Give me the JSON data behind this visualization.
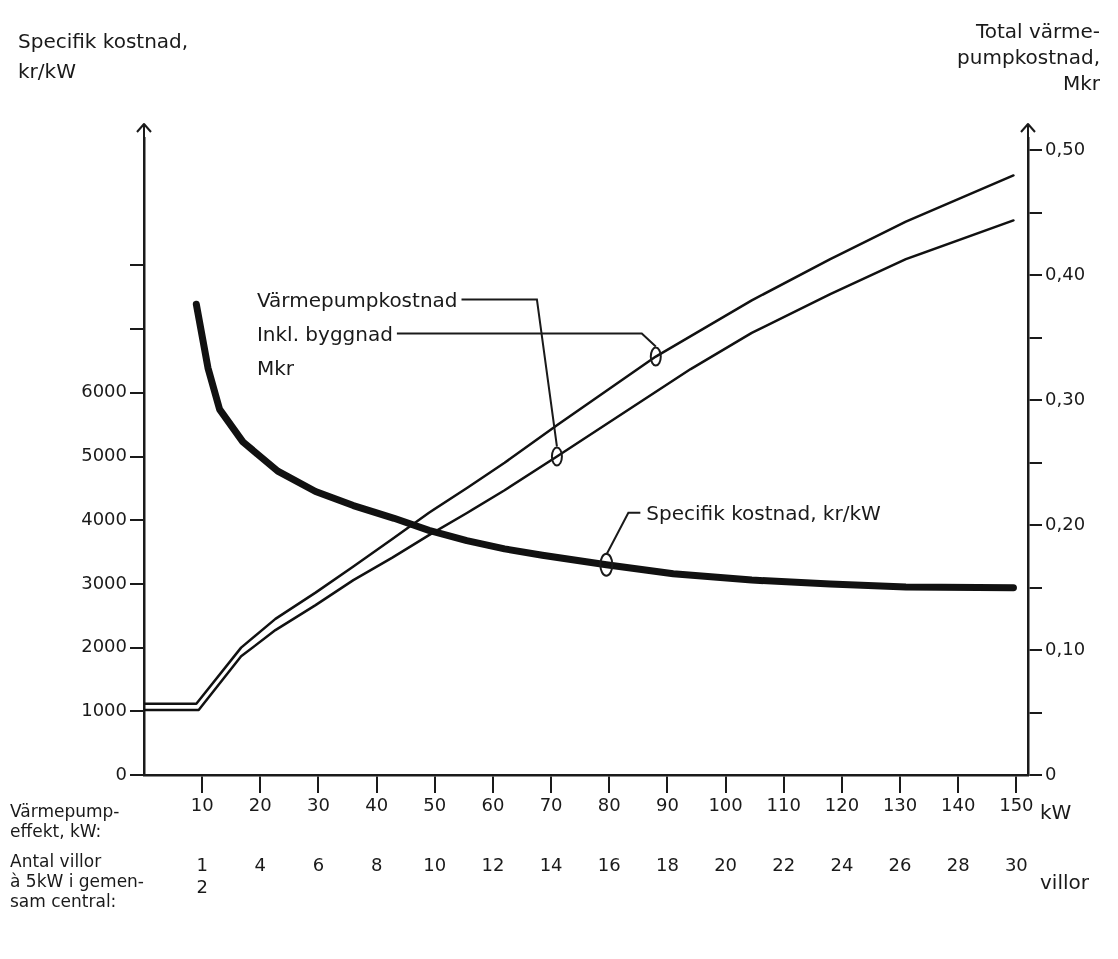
{
  "chart_data": {
    "type": "line",
    "ylabel": "Specifik kostnad,\nkr/kW",
    "y2label": "Total värme-\npumpkostnad,\nMkr",
    "xlabel": "Värmepump-\neffekt, kW:",
    "x2label": "Antal villor\nà 5kW i gemen-\nsam central:",
    "series": [
      {
        "name": "Värmepumpkostnad",
        "color": "#111111",
        "axis": "y2",
        "x": [
          0,
          9.4,
          16.7,
          22.6,
          29.5,
          36,
          42.7,
          49,
          55.6,
          62,
          71,
          94,
          104.5,
          118,
          131,
          149.5
        ],
        "values": [
          0.052,
          0.052,
          0.095,
          0.116,
          0.136,
          0.156,
          0.174,
          0.192,
          0.21,
          0.228,
          0.255,
          0.325,
          0.354,
          0.385,
          0.413,
          0.444
        ]
      },
      {
        "name": "Inkl. byggnad",
        "color": "#111111",
        "axis": "y2",
        "x": [
          0,
          9,
          16.7,
          22.6,
          29.5,
          36,
          42.7,
          49,
          55.6,
          62,
          71,
          88,
          104.5,
          118,
          131,
          149.5
        ],
        "values": [
          0.057,
          0.057,
          0.102,
          0.125,
          0.146,
          0.167,
          0.189,
          0.21,
          0.23,
          0.25,
          0.28,
          0.335,
          0.38,
          0.413,
          0.443,
          0.48
        ]
      },
      {
        "name": "Specifik kostnad, kr/kW",
        "color": "#111111",
        "axis": "y",
        "x": [
          9,
          11,
          13,
          17,
          23,
          29.5,
          36,
          43,
          49,
          55.5,
          62,
          68.5,
          79.5,
          91,
          104.5,
          118,
          131,
          149.5
        ],
        "values": [
          7390,
          6390,
          5740,
          5230,
          4770,
          4450,
          4230,
          4030,
          3840,
          3680,
          3550,
          3450,
          3300,
          3160,
          3060,
          3000,
          2950,
          2940
        ]
      }
    ],
    "xlim": [
      0,
      152
    ],
    "xticks": [
      10,
      20,
      30,
      40,
      50,
      60,
      70,
      80,
      90,
      100,
      110,
      120,
      130,
      140,
      150
    ],
    "x2lim": [
      0,
      30.4
    ],
    "x2ticks": [
      {
        "value": 2,
        "label": "1\n2"
      },
      4,
      6,
      8,
      10,
      12,
      14,
      16,
      18,
      20,
      22,
      24,
      26,
      28,
      30
    ],
    "ylim": [
      0,
      10000
    ],
    "yticks": [
      0,
      1000,
      2000,
      3000,
      4000,
      5000,
      6000,
      {
        "value": 7000,
        "label": null
      },
      {
        "value": 8000,
        "label": null
      }
    ],
    "y2lim": [
      0,
      0.51
    ],
    "y2ticks": [
      {
        "value": 0,
        "label": "0"
      },
      {
        "value": 0.05,
        "label": null
      },
      {
        "value": 0.1,
        "label": "0,10"
      },
      {
        "value": 0.15,
        "label": null
      },
      {
        "value": 0.2,
        "label": "0,20"
      },
      {
        "value": 0.25,
        "label": null
      },
      {
        "value": 0.3,
        "label": "0,30"
      },
      {
        "value": 0.35,
        "label": null
      },
      {
        "value": 0.4,
        "label": "0,40"
      },
      {
        "value": 0.45,
        "label": null
      },
      {
        "value": 0.5,
        "label": "0,50"
      }
    ],
    "annotations": [
      "Mkr",
      "kW",
      "villor"
    ],
    "grid": false,
    "legend": false,
    "marker": "none",
    "line_style": "solid"
  }
}
